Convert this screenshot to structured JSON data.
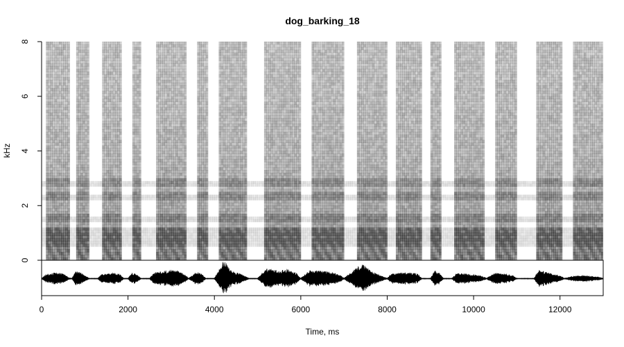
{
  "chart_data": [
    {
      "type": "heatmap",
      "title": "dog_barking_18",
      "ylabel": "kHz",
      "xlabel": "",
      "xlim": [
        0,
        13000
      ],
      "ylim": [
        0,
        8
      ],
      "y_ticks": [
        "0",
        "2",
        "4",
        "6",
        "8"
      ],
      "colormap": "grayscale, white = low energy, dark = high energy",
      "bark_segments_ms": [
        [
          80,
          640
        ],
        [
          780,
          1050
        ],
        [
          1360,
          1830
        ],
        [
          2060,
          2250
        ],
        [
          2620,
          3300
        ],
        [
          3600,
          3810
        ],
        [
          4070,
          4700
        ],
        [
          5120,
          5950
        ],
        [
          6230,
          6980
        ],
        [
          7270,
          7950
        ],
        [
          8180,
          8790
        ],
        [
          9000,
          9220
        ],
        [
          9520,
          10200
        ],
        [
          10470,
          10990
        ],
        [
          11420,
          12030
        ],
        [
          12260,
          12950
        ]
      ],
      "harmonic_bands_khz": [
        0.6,
        0.8,
        1.0,
        1.5,
        2.3,
        2.8
      ]
    },
    {
      "type": "area",
      "series_name": "waveform",
      "xlabel": "Time, ms",
      "xlim": [
        0,
        13000
      ],
      "x_ticks": [
        "0",
        "2000",
        "4000",
        "6000",
        "8000",
        "10000",
        "12000"
      ],
      "ylim": [
        -1,
        1
      ],
      "x": [
        0,
        100,
        300,
        500,
        640,
        700,
        800,
        900,
        1000,
        1100,
        1300,
        1400,
        1600,
        1800,
        1900,
        2000,
        2100,
        2200,
        2300,
        2500,
        2600,
        2800,
        3000,
        3200,
        3300,
        3400,
        3600,
        3700,
        3800,
        4000,
        4100,
        4200,
        4250,
        4300,
        4400,
        4500,
        4600,
        4700,
        4800,
        5000,
        5200,
        5300,
        5500,
        5700,
        5900,
        6000,
        6200,
        6300,
        6500,
        6700,
        6900,
        7000,
        7300,
        7400,
        7500,
        7600,
        7800,
        8000,
        8100,
        8300,
        8500,
        8700,
        8800,
        9000,
        9100,
        9200,
        9300,
        9500,
        9600,
        9800,
        10000,
        10200,
        10300,
        10500,
        10700,
        10900,
        11000,
        11400,
        11500,
        11600,
        11800,
        12000,
        12100,
        12300,
        12500,
        12700,
        12900,
        13000
      ],
      "values": [
        0.03,
        0.25,
        0.35,
        0.3,
        0.05,
        0.03,
        0.45,
        0.4,
        0.2,
        0.03,
        0.03,
        0.3,
        0.35,
        0.3,
        0.03,
        0.03,
        0.35,
        0.25,
        0.03,
        0.03,
        0.35,
        0.45,
        0.5,
        0.45,
        0.3,
        0.03,
        0.4,
        0.3,
        0.03,
        0.03,
        0.5,
        1.0,
        1.0,
        0.85,
        0.5,
        0.35,
        0.3,
        0.15,
        0.03,
        0.03,
        0.6,
        0.55,
        0.5,
        0.55,
        0.35,
        0.03,
        0.5,
        0.5,
        0.45,
        0.4,
        0.25,
        0.03,
        0.7,
        0.85,
        0.75,
        0.5,
        0.25,
        0.03,
        0.3,
        0.35,
        0.35,
        0.3,
        0.03,
        0.03,
        0.5,
        0.35,
        0.03,
        0.03,
        0.3,
        0.3,
        0.25,
        0.15,
        0.03,
        0.35,
        0.3,
        0.2,
        0.03,
        0.03,
        0.55,
        0.45,
        0.3,
        0.2,
        0.03,
        0.15,
        0.2,
        0.15,
        0.1,
        0.03
      ]
    }
  ]
}
